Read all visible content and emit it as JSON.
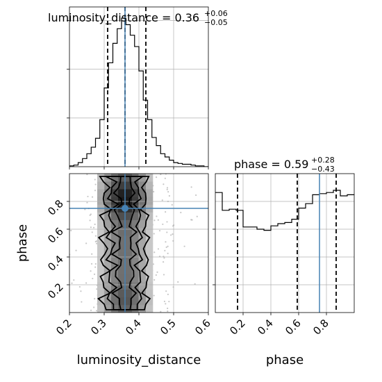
{
  "chart_data": [
    {
      "type": "histogram",
      "panel": "marginal-luminosity_distance",
      "title": "luminosity_distance",
      "title_value": "0.36",
      "title_upper": "+0.06",
      "title_lower": "−0.05",
      "xlim": [
        0.2,
        0.6
      ],
      "grid": true,
      "bin_edges": [
        0.2,
        0.2125,
        0.225,
        0.2375,
        0.25,
        0.2625,
        0.275,
        0.2875,
        0.3,
        0.3125,
        0.325,
        0.3375,
        0.35,
        0.3625,
        0.375,
        0.3875,
        0.4,
        0.4125,
        0.425,
        0.4375,
        0.45,
        0.4625,
        0.475,
        0.4875,
        0.5,
        0.5125,
        0.525,
        0.5375,
        0.55,
        0.5625,
        0.575,
        0.5875,
        0.6
      ],
      "counts": [
        1,
        2,
        5,
        10,
        16,
        24,
        35,
        58,
        97,
        128,
        152,
        170,
        183,
        175,
        162,
        148,
        118,
        82,
        58,
        36,
        26,
        16,
        12,
        8,
        5,
        4,
        3,
        3,
        2,
        1,
        1,
        0
      ],
      "quantile_lines": [
        0.31,
        0.36,
        0.42
      ],
      "truth": 0.36,
      "truth_color": "#4682b4"
    },
    {
      "type": "histogram",
      "panel": "marginal-phase",
      "title": "phase",
      "title_value": "0.59",
      "title_upper": "+0.28",
      "title_lower": "−0.43",
      "xlabel": "phase",
      "xlim": [
        0.0,
        1.0
      ],
      "xticks": [
        "0.2",
        "0.4",
        "0.6",
        "0.8"
      ],
      "grid": true,
      "bin_edges": [
        0.0,
        0.05,
        0.1,
        0.15,
        0.2,
        0.25,
        0.3,
        0.35,
        0.4,
        0.45,
        0.5,
        0.55,
        0.6,
        0.65,
        0.7,
        0.75,
        0.8,
        0.85,
        0.9,
        0.95,
        1.0
      ],
      "counts": [
        108,
        92,
        93,
        92,
        77,
        77,
        75,
        74,
        78,
        80,
        81,
        84,
        94,
        98,
        106,
        107,
        108,
        110,
        105,
        106
      ],
      "quantile_lines": [
        0.16,
        0.59,
        0.87
      ],
      "truth": 0.75,
      "truth_color": "#4682b4"
    },
    {
      "type": "2d-histogram-contour",
      "panel": "joint-luminosity_distance-phase",
      "xlabel": "luminosity_distance",
      "ylabel": "phase",
      "xlim": [
        0.2,
        0.6
      ],
      "ylim": [
        0.0,
        1.0
      ],
      "xticks": [
        "0.2",
        "0.3",
        "0.4",
        "0.5",
        "0.6"
      ],
      "yticks": [
        "0.2",
        "0.4",
        "0.6",
        "0.8"
      ],
      "grid": true,
      "truth_point": [
        0.36,
        0.75
      ],
      "truth_color": "#4682b4",
      "density_x_center": 0.36,
      "density_x_width": 0.05,
      "contour_levels": [
        0.4,
        0.8,
        1.2
      ]
    }
  ]
}
